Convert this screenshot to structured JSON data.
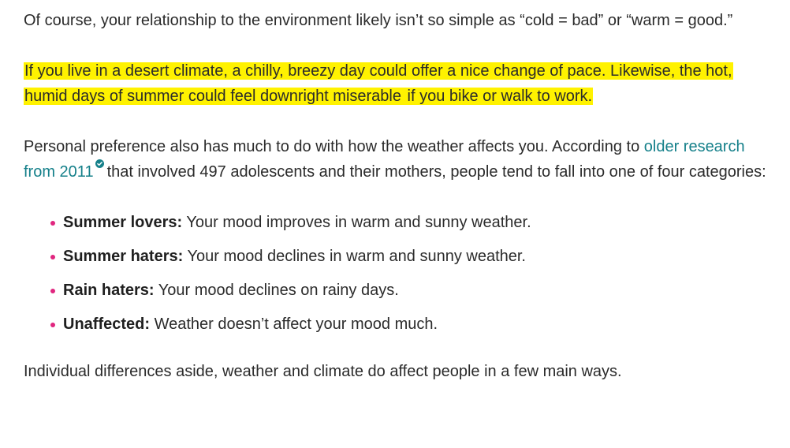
{
  "article": {
    "p1": "Of course, your relationship to the environment likely isn’t so simple as “cold = bad” or “warm = good.”",
    "p2": {
      "highlight1": "If you live in a desert climate, a chilly, breezy day could offer a nice change of pace. Likewise, the hot, humid days of summer could feel downright miserable",
      "highlight2": " if you bike or walk to work. "
    },
    "p3": {
      "before_link": "Personal preference also has much to do with how the weather affects you. According to ",
      "link_text": "older research from 2011",
      "after_link": "that involved 497 adolescents and their mothers, people tend to fall into one of four categories:"
    },
    "categories": [
      {
        "term": "Summer lovers:",
        "desc": " Your mood improves in warm and sunny weather."
      },
      {
        "term": "Summer haters:",
        "desc": " Your mood declines in warm and sunny weather."
      },
      {
        "term": "Rain haters:",
        "desc": " Your mood declines on rainy days."
      },
      {
        "term": "Unaffected:",
        "desc": " Weather doesn’t affect your mood much."
      }
    ],
    "p4": "Individual differences aside, weather and climate do affect people in a few main ways."
  },
  "colors": {
    "text": "#2b2b2b",
    "link": "#15808a",
    "highlight": "#fff200",
    "bullet": "#e0267f"
  },
  "icons": {
    "verified": "verified-check-icon"
  }
}
